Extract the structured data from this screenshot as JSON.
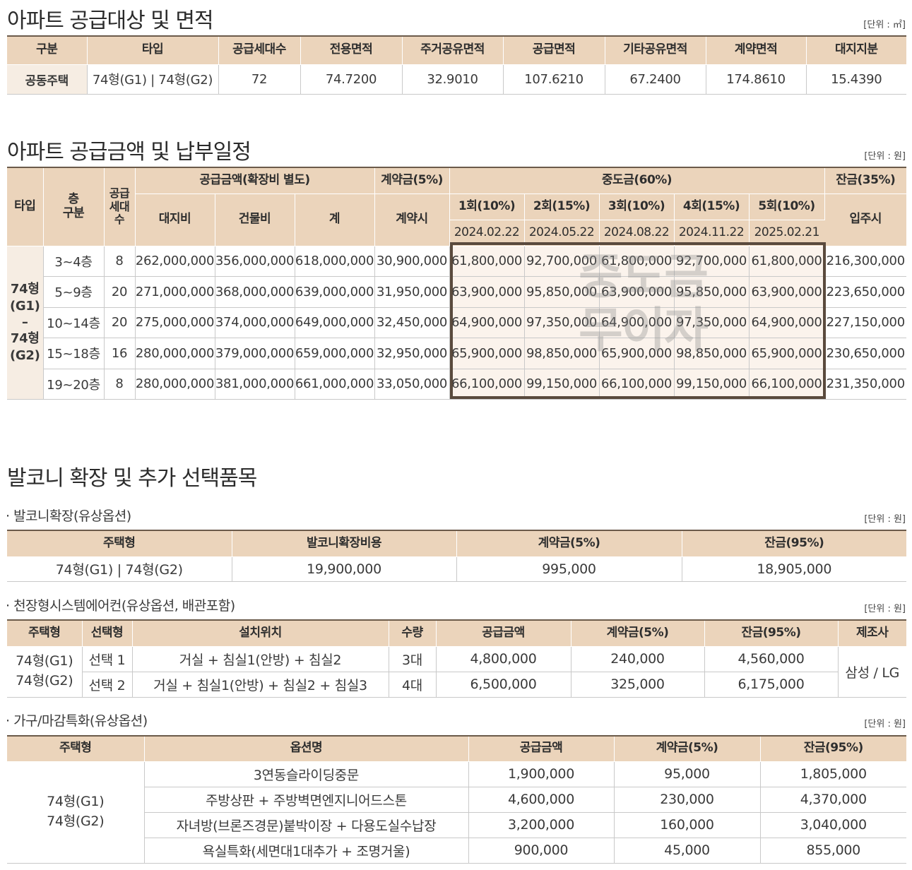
{
  "area": {
    "title": "아파트 공급대상 및 면적",
    "unit": "[단위 : ㎡]",
    "headers": [
      "구분",
      "타입",
      "공급세대수",
      "전용면적",
      "주거공유면적",
      "공급면적",
      "기타공유면적",
      "계약면적",
      "대지지분"
    ],
    "row": [
      "공동주택",
      "74형(G1) | 74형(G2)",
      "72",
      "74.7200",
      "32.9010",
      "107.6210",
      "67.2400",
      "174.8610",
      "15.4390"
    ]
  },
  "price": {
    "title": "아파트 공급금액 및 납부일정",
    "unit": "[단위 : 원]",
    "h_type": "타입",
    "h_floor": "층\n구분",
    "h_units": "공급\n세대\n수",
    "h_supply": "공급금액(확장비 별도)",
    "h_land": "대지비",
    "h_building": "건물비",
    "h_total": "계",
    "h_deposit": "계약금(5%)",
    "h_deposit_sub": "계약시",
    "h_middle": "중도금(60%)",
    "installments": [
      {
        "label": "1회(10%)",
        "date": "2024.02.22"
      },
      {
        "label": "2회(15%)",
        "date": "2024.05.22"
      },
      {
        "label": "3회(10%)",
        "date": "2024.08.22"
      },
      {
        "label": "4회(15%)",
        "date": "2024.11.22"
      },
      {
        "label": "5회(10%)",
        "date": "2025.02.21"
      }
    ],
    "h_balance": "잔금(35%)",
    "h_balance_sub": "입주시",
    "type_label": "74형\n(G1)\n–\n74형\n(G2)",
    "watermark": "중도금\n무이자",
    "rows": [
      [
        "3~4층",
        "8",
        "262,000,000",
        "356,000,000",
        "618,000,000",
        "30,900,000",
        "61,800,000",
        "92,700,000",
        "61,800,000",
        "92,700,000",
        "61,800,000",
        "216,300,000"
      ],
      [
        "5~9층",
        "20",
        "271,000,000",
        "368,000,000",
        "639,000,000",
        "31,950,000",
        "63,900,000",
        "95,850,000",
        "63,900,000",
        "95,850,000",
        "63,900,000",
        "223,650,000"
      ],
      [
        "10~14층",
        "20",
        "275,000,000",
        "374,000,000",
        "649,000,000",
        "32,450,000",
        "64,900,000",
        "97,350,000",
        "64,900,000",
        "97,350,000",
        "64,900,000",
        "227,150,000"
      ],
      [
        "15~18층",
        "16",
        "280,000,000",
        "379,000,000",
        "659,000,000",
        "32,950,000",
        "65,900,000",
        "98,850,000",
        "65,900,000",
        "98,850,000",
        "65,900,000",
        "230,650,000"
      ],
      [
        "19~20층",
        "8",
        "280,000,000",
        "381,000,000",
        "661,000,000",
        "33,050,000",
        "66,100,000",
        "99,150,000",
        "66,100,000",
        "99,150,000",
        "66,100,000",
        "231,350,000"
      ]
    ]
  },
  "options_title": "발코니 확장 및 추가 선택품목",
  "balcony": {
    "subtitle": "· 발코니확장(유상옵션)",
    "unit": "[단위 : 원]",
    "headers": [
      "주택형",
      "발코니확장비용",
      "계약금(5%)",
      "잔금(95%)"
    ],
    "row": [
      "74형(G1) | 74형(G2)",
      "19,900,000",
      "995,000",
      "18,905,000"
    ]
  },
  "aircon": {
    "subtitle": "· 천장형시스템에어컨(유상옵션, 배관포함)",
    "unit": "[단위 : 원]",
    "headers": [
      "주택형",
      "선택형",
      "설치위치",
      "수량",
      "공급금액",
      "계약금(5%)",
      "잔금(95%)",
      "제조사"
    ],
    "type": "74형(G1)\n74형(G2)",
    "maker": "삼성 / LG",
    "rows": [
      [
        "선택 1",
        "거실 + 침실1(안방) + 침실2",
        "3대",
        "4,800,000",
        "240,000",
        "4,560,000"
      ],
      [
        "선택 2",
        "거실 + 침실1(안방) + 침실2 + 침실3",
        "4대",
        "6,500,000",
        "325,000",
        "6,175,000"
      ]
    ]
  },
  "furniture": {
    "subtitle": "· 가구/마감특화(유상옵션)",
    "unit": "[단위 : 원]",
    "headers": [
      "주택형",
      "옵션명",
      "공급금액",
      "계약금(5%)",
      "잔금(95%)"
    ],
    "type": "74형(G1)\n74형(G2)",
    "rows": [
      [
        "3연동슬라이딩중문",
        "1,900,000",
        "95,000",
        "1,805,000"
      ],
      [
        "주방상판 + 주방벽면엔지니어드스톤",
        "4,600,000",
        "230,000",
        "4,370,000"
      ],
      [
        "자녀방(브론즈경문)붙박이장 + 다용도실수납장",
        "3,200,000",
        "160,000",
        "3,040,000"
      ],
      [
        "욕실특화(세면대1대추가 + 조명거울)",
        "900,000",
        "45,000",
        "855,000"
      ]
    ]
  }
}
